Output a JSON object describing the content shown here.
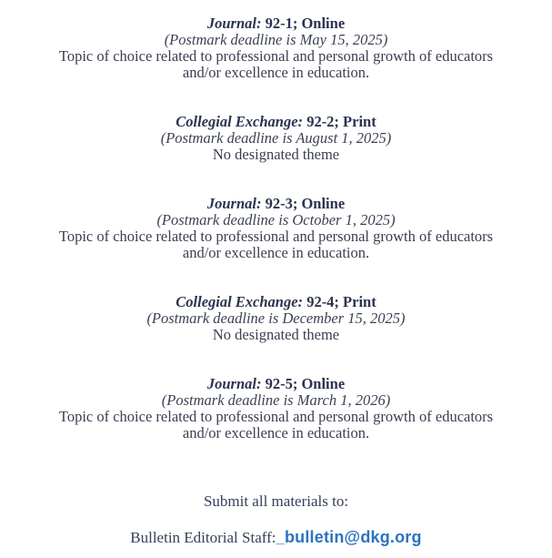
{
  "issues": [
    {
      "name": "Journal:",
      "number": "92-1; Online",
      "deadline": "(Postmark deadline is May 15, 2025)",
      "theme": [
        "Topic of choice related to professional and personal growth of educators",
        "and/or excellence in education."
      ]
    },
    {
      "name": "Collegial Exchange:",
      "number": "92-2; Print",
      "deadline": "(Postmark deadline is August 1, 2025)",
      "theme": [
        "No designated theme"
      ]
    },
    {
      "name": "Journal:",
      "number": "92-3; Online",
      "deadline": "(Postmark deadline is October 1, 2025)",
      "theme": [
        "Topic of choice related to professional and personal growth of educators",
        "and/or excellence in education."
      ]
    },
    {
      "name": "Collegial Exchange:",
      "number": "92-4; Print",
      "deadline": "(Postmark deadline is December 15, 2025)",
      "theme": [
        "No designated theme"
      ]
    },
    {
      "name": "Journal:",
      "number": "92-5; Online",
      "deadline": "(Postmark deadline is March 1, 2026)",
      "theme": [
        "Topic of choice related to professional and personal growth of educators",
        "and/or excellence in education."
      ]
    }
  ],
  "submit": {
    "instruction": "Submit all materials to:",
    "label": "Bulletin Editorial Staff:",
    "separator": "_",
    "email": "bulletin@dkg.org"
  },
  "colors": {
    "background": "#ffffff",
    "body_text": "#3a3f50",
    "heading_text": "#2c3350",
    "email_blue": "#2a73c0"
  }
}
